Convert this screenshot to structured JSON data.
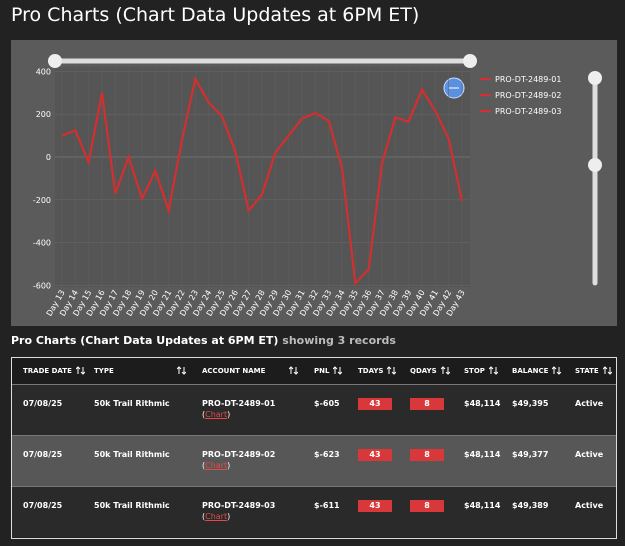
{
  "header": {
    "title": "Pro Charts (Chart Data Updates at 6PM ET)"
  },
  "chart_data": {
    "type": "line",
    "categories": [
      "Day 13",
      "Day 14",
      "Day 15",
      "Day 16",
      "Day 17",
      "Day 18",
      "Day 19",
      "Day 20",
      "Day 21",
      "Day 22",
      "Day 23",
      "Day 24",
      "Day 25",
      "Day 26",
      "Day 27",
      "Day 28",
      "Day 29",
      "Day 30",
      "Day 31",
      "Day 32",
      "Day 33",
      "Day 34",
      "Day 35",
      "Day 36",
      "Day 37",
      "Day 38",
      "Day 39",
      "Day 40",
      "Day 41",
      "Day 42",
      "Day 43"
    ],
    "series": [
      {
        "name": "PRO-DT-2489-01",
        "color": "#d03030",
        "values": [
          100,
          125,
          -25,
          300,
          -170,
          0,
          -195,
          -65,
          -250,
          80,
          365,
          255,
          190,
          25,
          -250,
          -175,
          20,
          100,
          180,
          205,
          170,
          -50,
          -590,
          -525,
          -30,
          185,
          165,
          315,
          215,
          85,
          -205
        ]
      },
      {
        "name": "PRO-DT-2489-02",
        "color": "#d03030",
        "values": [
          100,
          125,
          -25,
          300,
          -170,
          0,
          -195,
          -65,
          -250,
          80,
          365,
          255,
          190,
          25,
          -250,
          -175,
          20,
          100,
          180,
          205,
          170,
          -50,
          -590,
          -525,
          -30,
          185,
          165,
          315,
          215,
          85,
          -205
        ]
      },
      {
        "name": "PRO-DT-2489-03",
        "color": "#d03030",
        "values": [
          100,
          125,
          -25,
          300,
          -170,
          0,
          -195,
          -65,
          -250,
          80,
          365,
          255,
          190,
          25,
          -250,
          -175,
          20,
          100,
          180,
          205,
          170,
          -50,
          -590,
          -525,
          -30,
          185,
          165,
          315,
          215,
          85,
          -205
        ]
      }
    ],
    "ylim": [
      -600,
      400
    ],
    "yticks": [
      -600,
      -400,
      -200,
      0,
      200,
      400
    ],
    "grid": true,
    "legend": "right"
  },
  "section": {
    "title": "Pro Charts (Chart Data Updates at 6PM ET)",
    "suffix": "showing 3 records"
  },
  "table": {
    "headers": [
      "TRADE DATE",
      "TYPE",
      "ACCOUNT NAME",
      "PNL",
      "TDAYS",
      "QDAYS",
      "STOP",
      "BALANCE",
      "STATE"
    ],
    "link": {
      "open": "(",
      "text": "Chart",
      "close": ")"
    },
    "rows": [
      [
        "07/08/25",
        "50k Trail Rithmic",
        "PRO-DT-2489-01",
        "$-605",
        "43",
        "8",
        "$48,114",
        "$49,395",
        "Active"
      ],
      [
        "07/08/25",
        "50k Trail Rithmic",
        "PRO-DT-2489-02",
        "$-623",
        "43",
        "8",
        "$48,114",
        "$49,377",
        "Active"
      ],
      [
        "07/08/25",
        "50k Trail Rithmic",
        "PRO-DT-2489-03",
        "$-611",
        "43",
        "8",
        "$48,114",
        "$49,389",
        "Active"
      ]
    ]
  }
}
